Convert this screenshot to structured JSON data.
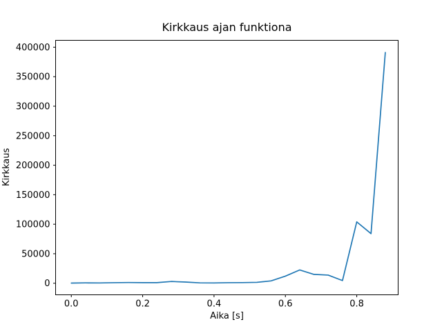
{
  "figure": {
    "background_color": "#ffffff",
    "frame_color": "#000000"
  },
  "chart_data": {
    "type": "line",
    "title": "Kirkkaus ajan funktiona",
    "xlabel": "Aika [s]",
    "ylabel": "Kirkkaus",
    "grid": false,
    "legend": null,
    "xlim": [
      -0.044,
      0.916
    ],
    "ylim": [
      -19600,
      411600
    ],
    "xticks": {
      "values": [
        0.0,
        0.2,
        0.4,
        0.6,
        0.8
      ],
      "labels": [
        "0.0",
        "0.2",
        "0.4",
        "0.6",
        "0.8"
      ]
    },
    "yticks": {
      "values": [
        0,
        50000,
        100000,
        150000,
        200000,
        250000,
        300000,
        350000,
        400000
      ],
      "labels": [
        "0",
        "50000",
        "100000",
        "150000",
        "200000",
        "250000",
        "300000",
        "350000",
        "400000"
      ]
    },
    "x": [
      0.0,
      0.04,
      0.08,
      0.12,
      0.16,
      0.2,
      0.24,
      0.28,
      0.32,
      0.36,
      0.4,
      0.44,
      0.48,
      0.52,
      0.56,
      0.6,
      0.64,
      0.68,
      0.72,
      0.76,
      0.8,
      0.84,
      0.88
    ],
    "series": [
      {
        "name": "kirkkaus",
        "color": "#1f77b4",
        "values": [
          300,
          600,
          500,
          900,
          1200,
          1000,
          1000,
          3000,
          2000,
          600,
          500,
          900,
          1100,
          1500,
          4000,
          12000,
          22500,
          15000,
          13800,
          4500,
          104000,
          84000,
          391000
        ]
      }
    ]
  }
}
